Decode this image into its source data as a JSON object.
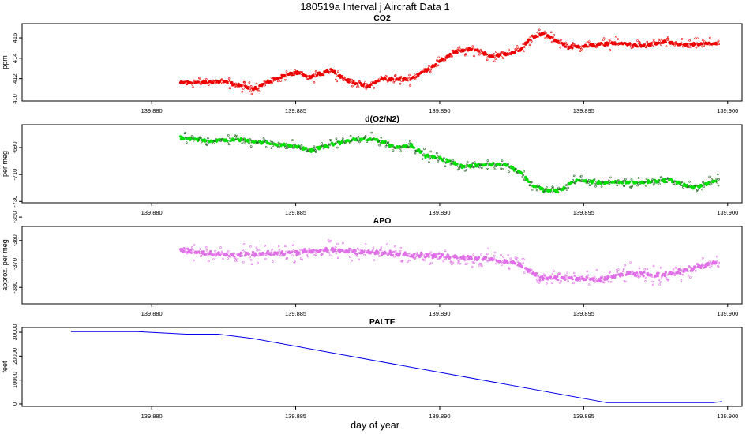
{
  "figure": {
    "title": "180519a   Interval j Aircraft Data 1",
    "xlabel": "day of year"
  },
  "chart_data": [
    {
      "type": "scatter",
      "title": "CO2",
      "ylabel": "ppm",
      "color": "#ee0000",
      "xlim": [
        139.8755,
        139.9005
      ],
      "ylim": [
        409.8,
        417.4
      ],
      "xticks": [
        "139.880",
        "139.885",
        "139.890",
        "139.895",
        "139.900"
      ],
      "yticks": [
        410,
        412,
        414,
        416
      ],
      "x_range": [
        139.881,
        139.8997
      ],
      "profile": [
        [
          139.881,
          411.6
        ],
        [
          139.8825,
          411.7
        ],
        [
          139.8835,
          411.0
        ],
        [
          139.8845,
          412.2
        ],
        [
          139.885,
          412.6
        ],
        [
          139.8855,
          412.1
        ],
        [
          139.8862,
          412.9
        ],
        [
          139.8868,
          411.8
        ],
        [
          139.8875,
          411.2
        ],
        [
          139.888,
          412.0
        ],
        [
          139.8887,
          411.9
        ],
        [
          139.889,
          412.0
        ],
        [
          139.8895,
          412.8
        ],
        [
          139.8898,
          413.3
        ],
        [
          139.89,
          413.7
        ],
        [
          139.8905,
          414.6
        ],
        [
          139.8912,
          414.9
        ],
        [
          139.8918,
          414.2
        ],
        [
          139.8923,
          414.4
        ],
        [
          139.8928,
          414.8
        ],
        [
          139.8932,
          416.1
        ],
        [
          139.8936,
          416.4
        ],
        [
          139.894,
          415.8
        ],
        [
          139.8945,
          415.1
        ],
        [
          139.895,
          415.2
        ],
        [
          139.896,
          415.5
        ],
        [
          139.8965,
          415.4
        ],
        [
          139.897,
          415.2
        ],
        [
          139.8978,
          415.6
        ],
        [
          139.8985,
          415.3
        ],
        [
          139.8997,
          415.5
        ]
      ],
      "noise": 0.45
    },
    {
      "type": "scatter",
      "title": "d(O2/N2)",
      "ylabel": "per meg",
      "color": "#00dd00",
      "xlim": [
        139.8755,
        139.9005
      ],
      "ylim": [
        -731,
        -673
      ],
      "xticks": [
        "139.880",
        "139.885",
        "139.890",
        "139.895",
        "139.900"
      ],
      "yticks": [
        -690,
        -710,
        -730
      ],
      "x_range": [
        139.881,
        139.8997
      ],
      "profile": [
        [
          139.881,
          -683
        ],
        [
          139.882,
          -685
        ],
        [
          139.883,
          -684
        ],
        [
          139.8845,
          -688
        ],
        [
          139.885,
          -689
        ],
        [
          139.8855,
          -692
        ],
        [
          139.8862,
          -688
        ],
        [
          139.887,
          -684
        ],
        [
          139.8878,
          -684
        ],
        [
          139.8885,
          -690
        ],
        [
          139.889,
          -688
        ],
        [
          139.8895,
          -696
        ],
        [
          139.89,
          -698
        ],
        [
          139.8908,
          -704
        ],
        [
          139.8915,
          -703
        ],
        [
          139.8922,
          -702
        ],
        [
          139.8928,
          -708
        ],
        [
          139.8932,
          -718
        ],
        [
          139.8937,
          -722
        ],
        [
          139.8942,
          -722
        ],
        [
          139.8947,
          -714
        ],
        [
          139.8955,
          -716
        ],
        [
          139.8962,
          -716
        ],
        [
          139.897,
          -716
        ],
        [
          139.898,
          -714
        ],
        [
          139.8988,
          -720
        ],
        [
          139.8997,
          -714
        ]
      ],
      "noise": 3.5
    },
    {
      "type": "scatter",
      "title": "APO",
      "ylabel": "approx. per meg",
      "color": "#e070e8",
      "xlim": [
        139.8755,
        139.9005
      ],
      "ylim": [
        -387,
        -354
      ],
      "xticks": [
        "139.880",
        "139.885",
        "139.890",
        "139.895",
        "139.900"
      ],
      "yticks": [
        -350,
        -360,
        -370,
        -380
      ],
      "x_range": [
        139.881,
        139.8997
      ],
      "profile": [
        [
          139.881,
          -364
        ],
        [
          139.8825,
          -366
        ],
        [
          139.8835,
          -366
        ],
        [
          139.885,
          -365
        ],
        [
          139.8862,
          -364
        ],
        [
          139.8875,
          -365
        ],
        [
          139.889,
          -366
        ],
        [
          139.8905,
          -367
        ],
        [
          139.8918,
          -368
        ],
        [
          139.8928,
          -370
        ],
        [
          139.8935,
          -376
        ],
        [
          139.8945,
          -376
        ],
        [
          139.8955,
          -377
        ],
        [
          139.8965,
          -374
        ],
        [
          139.8975,
          -375
        ],
        [
          139.8985,
          -373
        ],
        [
          139.8997,
          -369
        ]
      ],
      "noise": 3.2
    },
    {
      "type": "line",
      "title": "PALTF",
      "ylabel": "feet",
      "color": "#0000ee",
      "xlim": [
        139.8755,
        139.9005
      ],
      "ylim": [
        -1000,
        32000
      ],
      "xticks": [
        "139.880",
        "139.885",
        "139.890",
        "139.895",
        "139.900"
      ],
      "yticks": [
        0,
        10000,
        20000,
        30000
      ],
      "x": [
        139.8772,
        139.8795,
        139.8812,
        139.8823,
        139.8835,
        139.8958,
        139.8995,
        139.8998
      ],
      "y": [
        30300,
        30300,
        29200,
        29200,
        27400,
        600,
        600,
        1000
      ]
    }
  ]
}
